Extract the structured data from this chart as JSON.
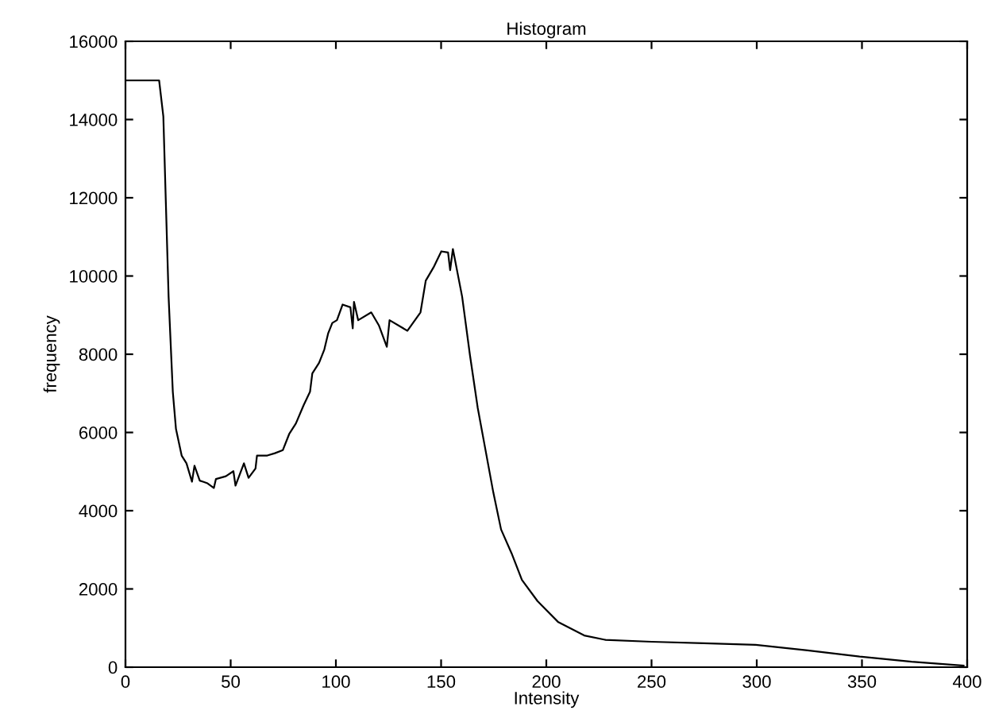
{
  "chart_data": {
    "type": "line",
    "title": "Histogram",
    "xlabel": "Intensity",
    "ylabel": "frequency",
    "xlim": [
      0,
      400
    ],
    "ylim": [
      0,
      16000
    ],
    "xticks": [
      0,
      50,
      100,
      150,
      200,
      250,
      300,
      350,
      400
    ],
    "yticks": [
      0,
      2000,
      4000,
      6000,
      8000,
      10000,
      12000,
      14000,
      16000
    ],
    "grid": false,
    "legend": false,
    "series": [
      {
        "color": "#000000",
        "x": [
          0,
          16,
          18,
          20.5,
          22.5,
          24,
          26.7,
          29,
          31.6,
          32.8,
          35.3,
          39,
          42,
          43,
          47.7,
          51.3,
          52.3,
          56.3,
          58.5,
          61.8,
          62.5,
          67.4,
          71,
          74.8,
          77.8,
          81,
          84.7,
          87.7,
          88.8,
          92,
          94.5,
          96.3,
          98.3,
          100.5,
          103.2,
          106.9,
          108,
          108.6,
          110.6,
          116.8,
          120.5,
          124.2,
          125.5,
          134,
          140.2,
          142.7,
          146.4,
          150.1,
          153.3,
          154.3,
          155.6,
          160,
          163.7,
          167.4,
          171.1,
          174.8,
          178.5,
          183.5,
          188.4,
          195.8,
          205.7,
          218,
          227.9,
          250,
          274.8,
          299.5,
          324.2,
          348.9,
          373.6,
          398.3
        ],
        "values": [
          15000,
          15000,
          14080,
          9470,
          7040,
          6090,
          5410,
          5210,
          4740,
          5150,
          4770,
          4700,
          4580,
          4810,
          4880,
          5010,
          4640,
          5210,
          4840,
          5080,
          5410,
          5410,
          5470,
          5550,
          5960,
          6230,
          6700,
          7040,
          7510,
          7780,
          8120,
          8530,
          8800,
          8870,
          9270,
          9200,
          8660,
          9340,
          8870,
          9070,
          8730,
          8190,
          8870,
          8600,
          9070,
          9880,
          10220,
          10630,
          10600,
          10150,
          10690,
          9470,
          7980,
          6630,
          5550,
          4470,
          3520,
          2910,
          2230,
          1690,
          1150,
          810,
          700,
          650,
          610,
          570,
          430,
          270,
          140,
          40
        ]
      }
    ]
  }
}
